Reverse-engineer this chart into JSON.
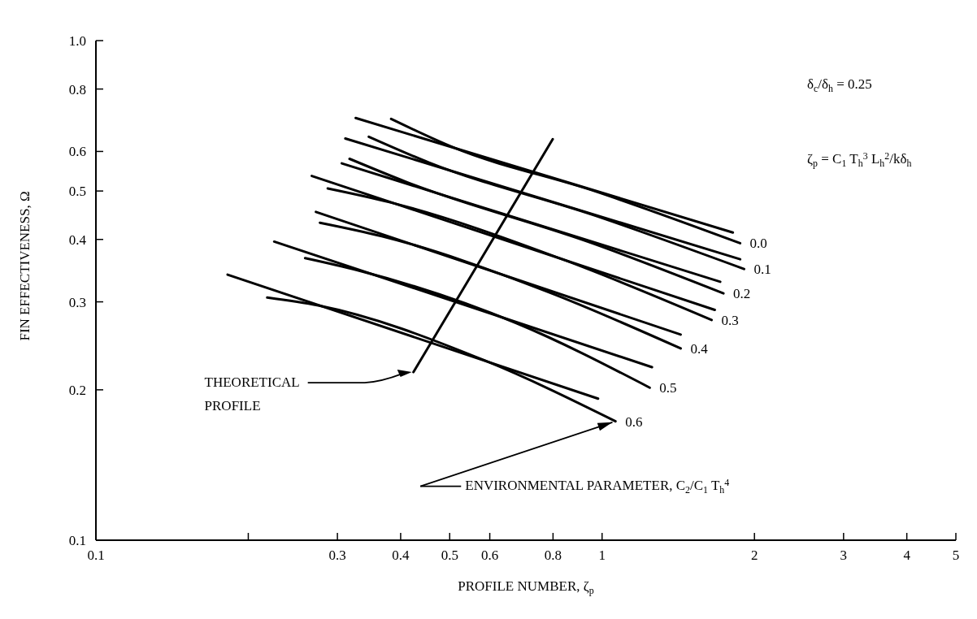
{
  "chart_data": {
    "type": "line",
    "xlabel": "PROFILE NUMBER, ζ$_{p}$",
    "ylabel": "FIN EFFECTIVENESS, Ω",
    "log": "xy",
    "grid": false,
    "xlim": [
      0.1,
      5
    ],
    "ylim": [
      0.1,
      1
    ],
    "xticks": [
      0.1,
      {
        "value": 0.2,
        "label": null
      },
      0.3,
      0.4,
      0.5,
      0.6,
      0.8,
      1,
      2,
      3,
      4,
      5
    ],
    "yticks": [
      0.1,
      0.2,
      0.3,
      0.4,
      0.5,
      0.6,
      0.8,
      {
        "value": 1,
        "label": "1.0"
      }
    ],
    "series": [
      {
        "color": "#000000",
        "x": [
          0.326,
          1.813
        ],
        "values": [
          0.7,
          0.413
        ]
      },
      {
        "color": "#000000",
        "x": [
          0.383,
          0.507,
          0.971,
          1.874
        ],
        "values": [
          0.697,
          0.612,
          0.499,
          0.393
        ]
      },
      {
        "color": "#000000",
        "x": [
          0.311,
          1.874
        ],
        "values": [
          0.637,
          0.365
        ]
      },
      {
        "color": "#000000",
        "x": [
          0.346,
          0.455,
          0.971,
          1.908
        ],
        "values": [
          0.642,
          0.57,
          0.446,
          0.349
        ]
      },
      {
        "color": "#000000",
        "x": [
          0.306,
          1.712
        ],
        "values": [
          0.568,
          0.329
        ]
      },
      {
        "color": "#000000",
        "x": [
          0.317,
          0.409,
          0.971,
          1.737
        ],
        "values": [
          0.58,
          0.522,
          0.391,
          0.312
        ]
      },
      {
        "color": "#000000",
        "x": [
          0.267,
          1.67
        ],
        "values": [
          0.536,
          0.289
        ]
      },
      {
        "color": "#000000",
        "x": [
          0.287,
          0.38,
          0.841,
          1.646
        ],
        "values": [
          0.506,
          0.475,
          0.364,
          0.276
        ]
      },
      {
        "color": "#000000",
        "x": [
          0.272,
          1.43
        ],
        "values": [
          0.454,
          0.258
        ]
      },
      {
        "color": "#000000",
        "x": [
          0.277,
          0.367,
          0.782,
          1.43
        ],
        "values": [
          0.432,
          0.406,
          0.314,
          0.242
        ]
      },
      {
        "color": "#000000",
        "x": [
          0.225,
          1.255
        ],
        "values": [
          0.396,
          0.222
        ]
      },
      {
        "color": "#000000",
        "x": [
          0.259,
          0.329,
          0.677,
          1.242
        ],
        "values": [
          0.367,
          0.347,
          0.272,
          0.202
        ]
      },
      {
        "color": "#000000",
        "x": [
          0.182,
          0.982
        ],
        "values": [
          0.34,
          0.192
        ]
      },
      {
        "color": "#000000",
        "x": [
          0.218,
          0.275,
          0.586,
          1.063
        ],
        "values": [
          0.306,
          0.295,
          0.229,
          0.173
        ]
      },
      {
        "color": "#000000",
        "x": [
          0.424,
          0.799
        ],
        "values": [
          0.217,
          0.635
        ]
      }
    ],
    "annotations": [
      {
        "text": "0.0",
        "x": 1.874,
        "y": 0.393
      },
      {
        "text": "0.1",
        "x": 1.908,
        "y": 0.349
      },
      {
        "text": "0.2",
        "x": 1.737,
        "y": 0.312
      },
      {
        "text": "0.3",
        "x": 1.646,
        "y": 0.276
      },
      {
        "text": "0.4",
        "x": 1.43,
        "y": 0.242
      },
      {
        "text": "0.5",
        "x": 1.242,
        "y": 0.202
      },
      {
        "text": "0.6",
        "x": 1.063,
        "y": 0.173
      },
      "THEORETICAL\nPROFILE",
      "ENVIRONMENTAL PARAMETER, C$_{2}$/C$_{1}$ T$_{h}$$^{4}$",
      "δ$_{c}$/δ$_{h}$ = 0.25",
      "ζ$_{p}$ = C$_{1}$ T$_{h}$$^{3}$ L$_{h}$$^{2}$/kδ$_{h}$"
    ]
  }
}
